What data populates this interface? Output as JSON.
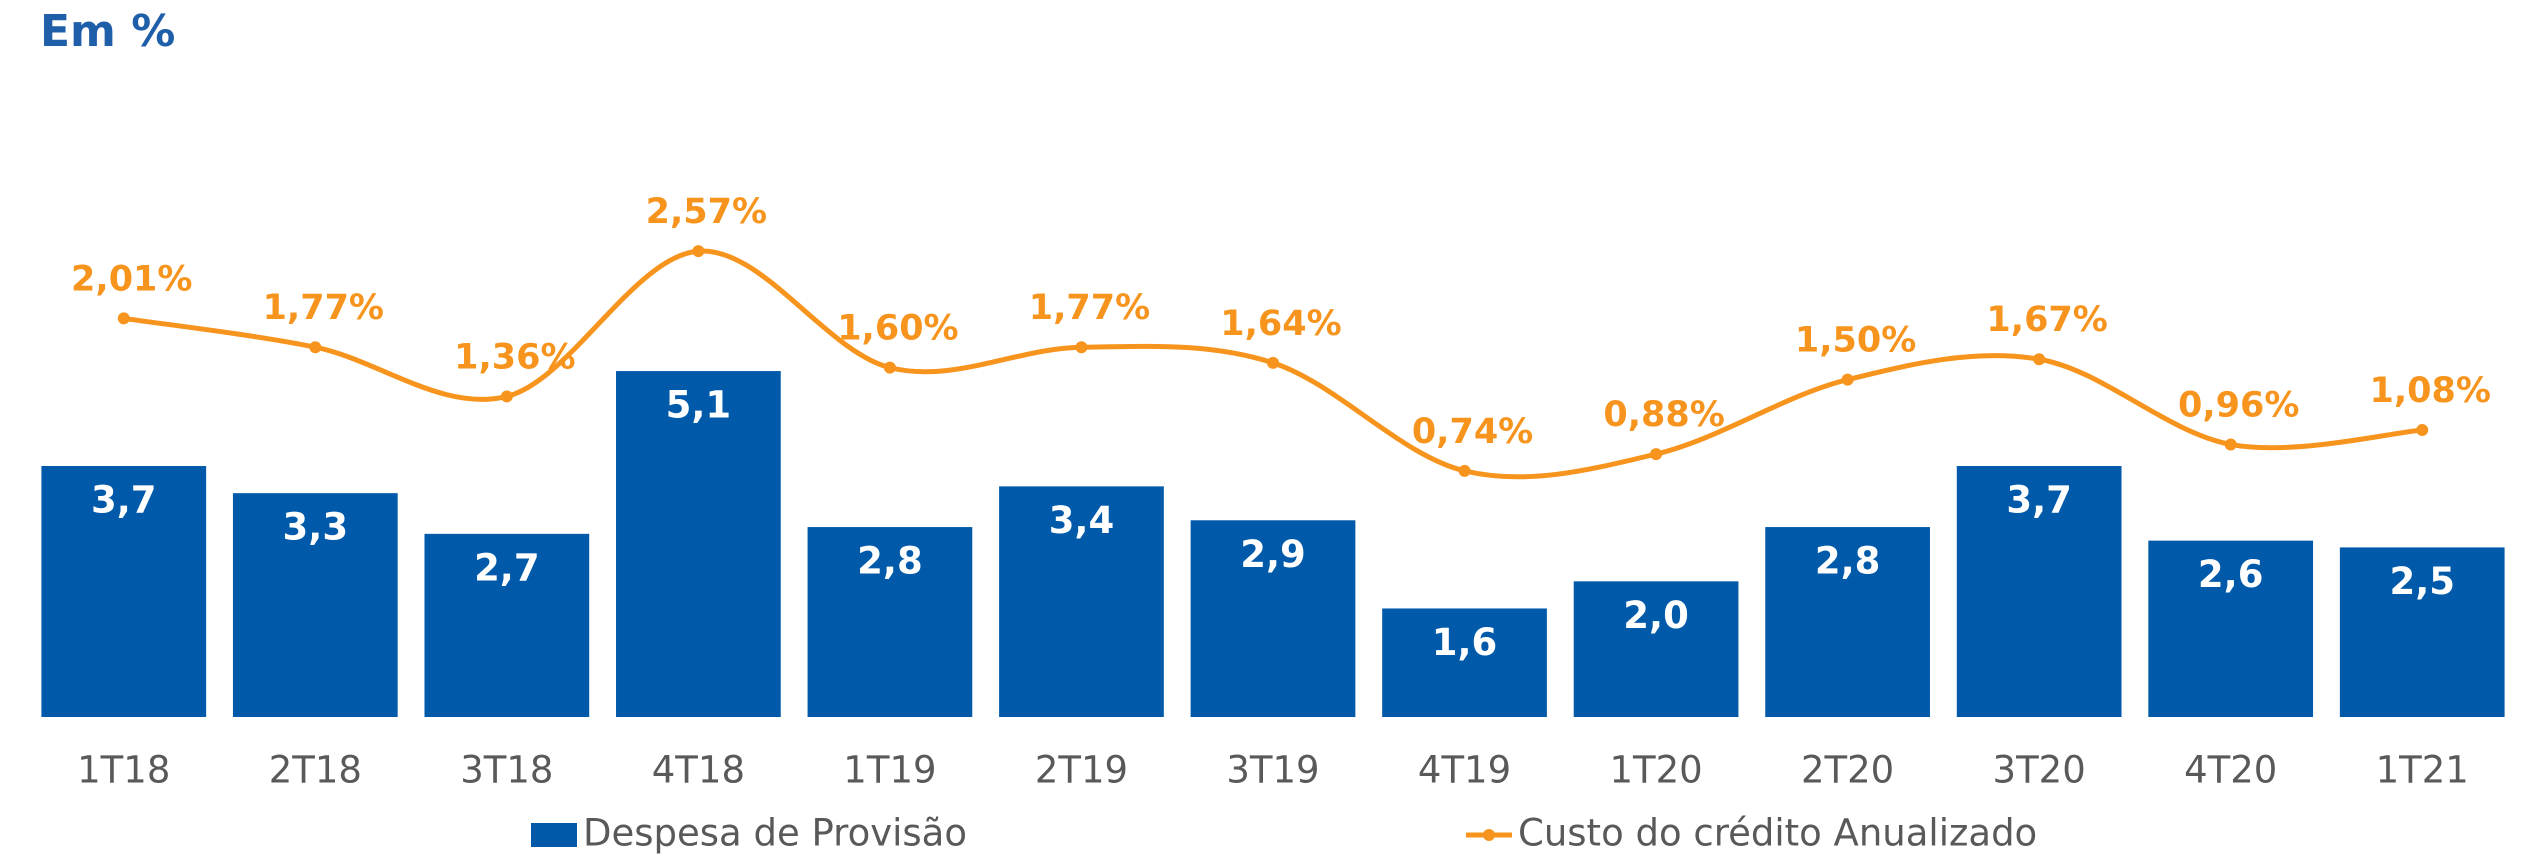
{
  "chart_data": {
    "type": "bar_line",
    "title": "Em %",
    "categories": [
      "1T18",
      "2T18",
      "3T18",
      "4T18",
      "1T19",
      "2T19",
      "3T19",
      "4T19",
      "1T20",
      "2T20",
      "3T20",
      "4T20",
      "1T21"
    ],
    "series": [
      {
        "name": "Despesa de Provisão",
        "type": "bar",
        "color": "#005aa9",
        "values": [
          3.7,
          3.3,
          2.7,
          5.1,
          2.8,
          3.4,
          2.9,
          1.6,
          2.0,
          2.8,
          3.7,
          2.6,
          2.5
        ],
        "value_labels": [
          "3,7",
          "3,3",
          "2,7",
          "5,1",
          "2,8",
          "3,4",
          "2,9",
          "1,6",
          "2,0",
          "2,8",
          "3,7",
          "2,6",
          "2,5"
        ]
      },
      {
        "name": "Custo do crédito Anualizado",
        "type": "line",
        "axis": "y2",
        "color": "#f7941d",
        "values": [
          2.01,
          1.77,
          1.36,
          2.57,
          1.6,
          1.77,
          1.64,
          0.74,
          0.88,
          1.5,
          1.67,
          0.96,
          1.08
        ],
        "value_labels": [
          "2,01%",
          "1,77%",
          "1,36%",
          "2,57%",
          "1,60%",
          "1,77%",
          "1,64%",
          "0,74%",
          "0,88%",
          "1,50%",
          "1,67%",
          "0,96%",
          "1,08%"
        ]
      }
    ],
    "ylim": [
      0,
      6
    ],
    "y2lim": [
      -1.31,
      2.08
    ],
    "legend": "bottom"
  }
}
